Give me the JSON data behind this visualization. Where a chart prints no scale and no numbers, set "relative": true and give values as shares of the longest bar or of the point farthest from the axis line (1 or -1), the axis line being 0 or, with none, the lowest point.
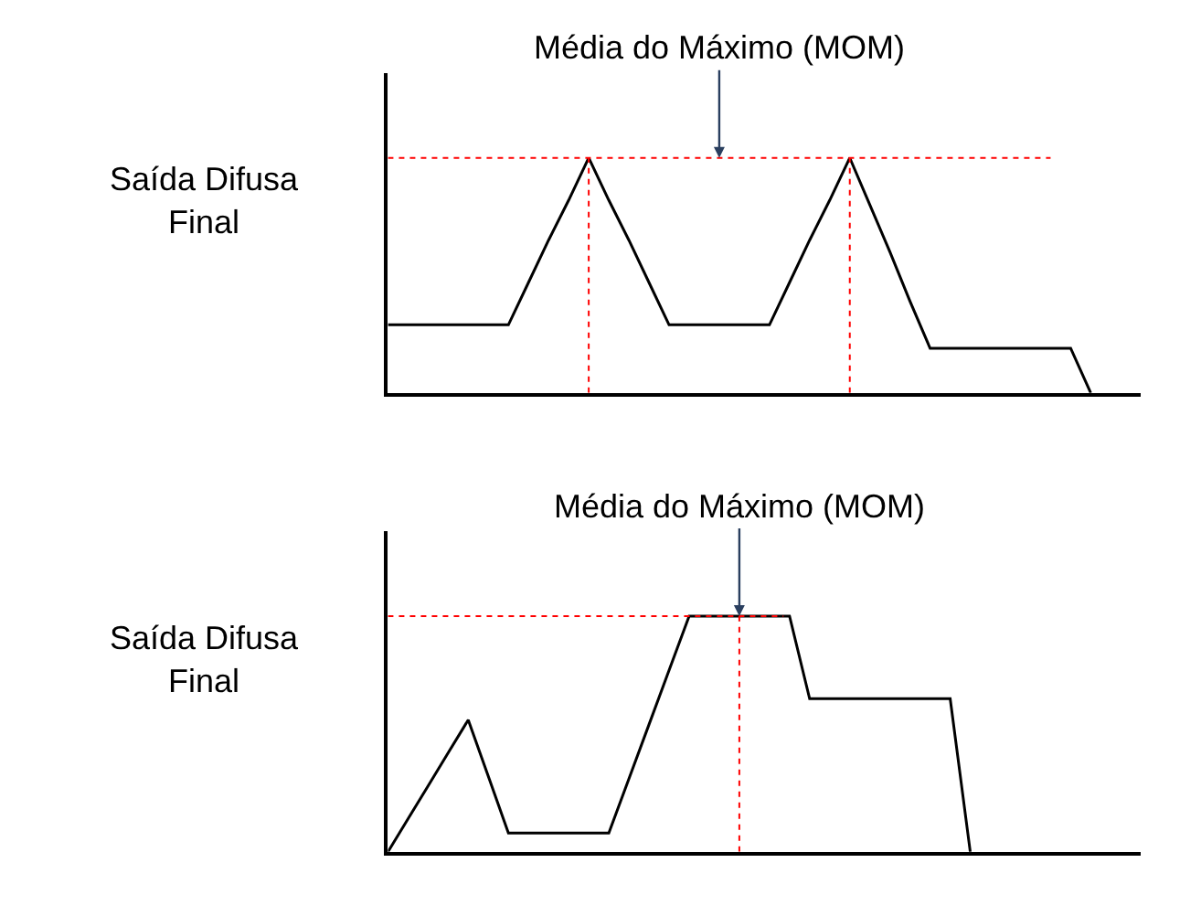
{
  "chart_data": [
    {
      "type": "line",
      "relative": true,
      "ylabel": "Saída Difusa Final",
      "marker": "none",
      "line_style": "solid",
      "categories": [
        null,
        null,
        null,
        null,
        null,
        null,
        null,
        null,
        null,
        null,
        null,
        null,
        null,
        null,
        null,
        null,
        null,
        null,
        null,
        null,
        null,
        null,
        null,
        null,
        null,
        null,
        null,
        null,
        null,
        null,
        null,
        null,
        null,
        null,
        null,
        null
      ],
      "series": [
        {
          "color": "#000000",
          "values": [
            0.29,
            0.29,
            0.29,
            0.29,
            0.29,
            0.29,
            0.29,
            0.47,
            0.65,
            0.82,
            1,
            0.82,
            0.65,
            0.47,
            0.29,
            0.29,
            0.29,
            0.29,
            0.29,
            0.29,
            0.47,
            0.65,
            0.82,
            1,
            0.8,
            0.6,
            0.39,
            0.19,
            0.19,
            0.19,
            0.19,
            0.19,
            0.19,
            0.19,
            0.19,
            0
          ]
        }
      ],
      "annotations": [
        "Média do Máximo (MOM)"
      ]
    },
    {
      "type": "line",
      "relative": true,
      "ylabel": "Saída Difusa Final",
      "marker": "none",
      "line_style": "solid",
      "categories": [
        null,
        null,
        null,
        null,
        null,
        null,
        null,
        null,
        null,
        null,
        null,
        null,
        null,
        null,
        null,
        null,
        null,
        null,
        null,
        null,
        null,
        null,
        null,
        null,
        null,
        null,
        null,
        null,
        null,
        null
      ],
      "series": [
        {
          "color": "#000000",
          "values": [
            0,
            0.14,
            0.28,
            0.42,
            0.56,
            0.32,
            0.08,
            0.08,
            0.08,
            0.08,
            0.08,
            0.08,
            0.31,
            0.54,
            0.77,
            1,
            1,
            1,
            1,
            1,
            1,
            0.65,
            0.65,
            0.65,
            0.65,
            0.65,
            0.65,
            0.65,
            0.65,
            0
          ]
        }
      ],
      "annotations": [
        "Média do Máximo (MOM)"
      ]
    }
  ]
}
